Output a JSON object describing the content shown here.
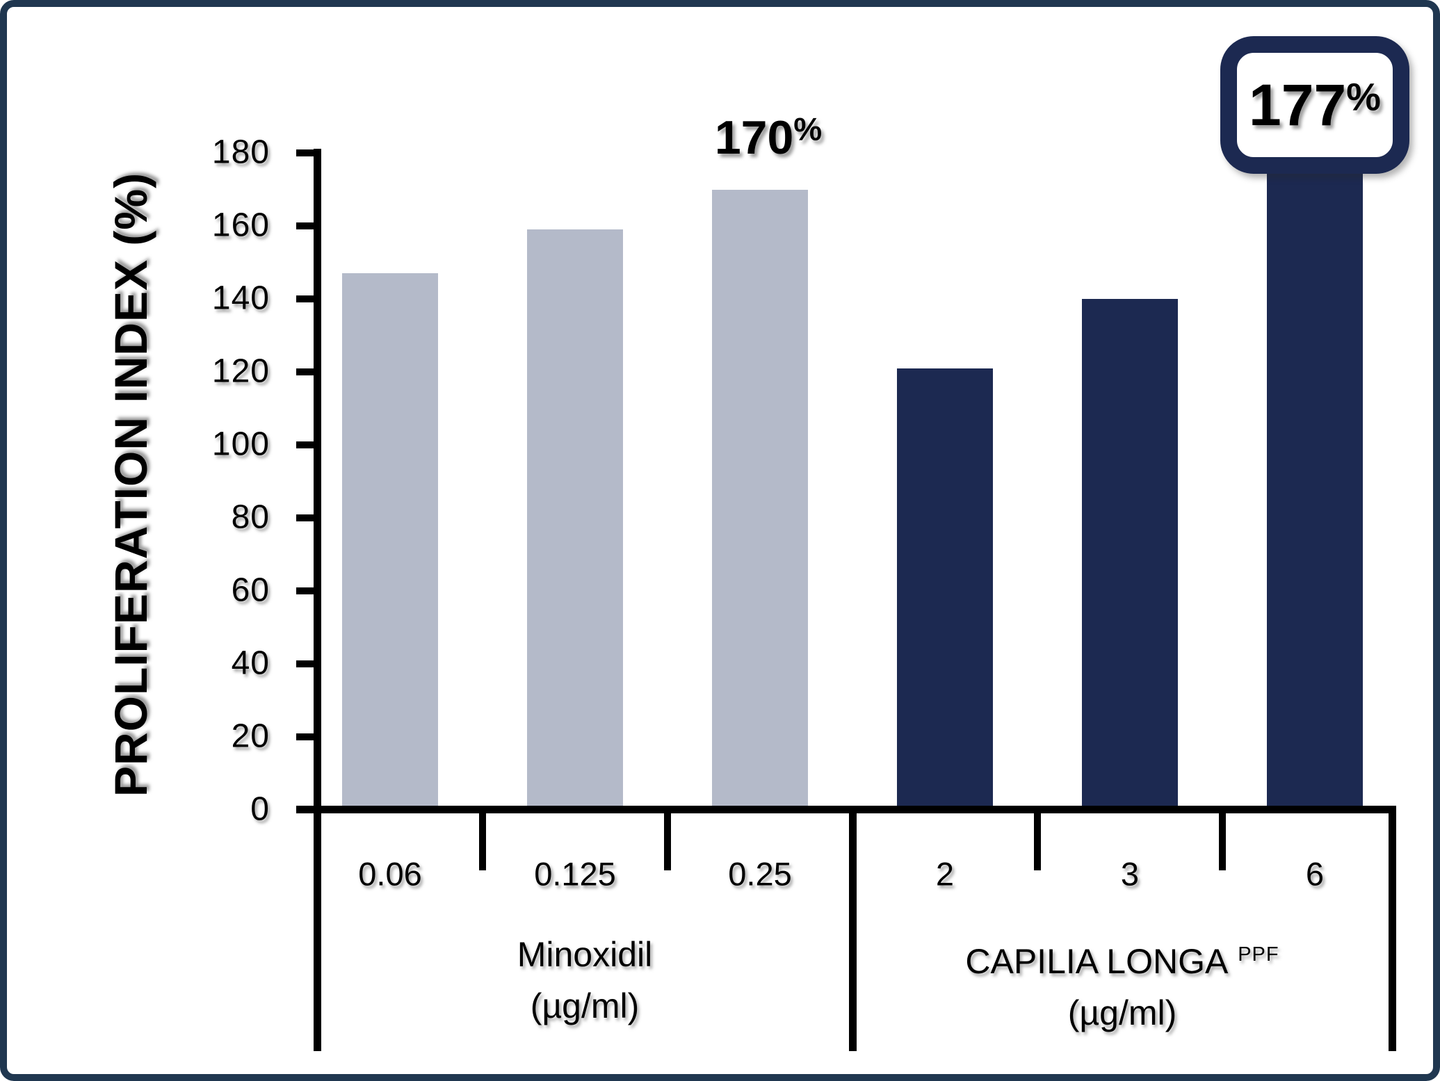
{
  "chart_data": {
    "type": "bar",
    "title": "",
    "ylabel": "PROLIFERATION INDEX (%)",
    "xlabel": "",
    "ylim": [
      0,
      180
    ],
    "ytick_step": 20,
    "ytick_labels": [
      "0",
      "20",
      "40",
      "60",
      "80",
      "100",
      "120",
      "140",
      "160",
      "180"
    ],
    "grid": false,
    "legend_position": "none",
    "categories": [
      "0.06",
      "0.125",
      "0.25",
      "2",
      "3",
      "6"
    ],
    "values": [
      147,
      159,
      170,
      121,
      140,
      177
    ],
    "groups": [
      {
        "label": "Minoxidil",
        "superscript": "",
        "unit": "(µg/ml)",
        "categories": [
          "0.06",
          "0.125",
          "0.25"
        ],
        "values": [
          147,
          159,
          170
        ],
        "bar_color": "#b4bac9"
      },
      {
        "label": "CAPILIA LONGA",
        "superscript": "PPF",
        "unit": "(µg/ml)",
        "categories": [
          "2",
          "3",
          "6"
        ],
        "values": [
          121,
          140,
          177
        ],
        "bar_color": "#1c2951"
      }
    ],
    "annotations": [
      {
        "text": "170%",
        "category": "0.25",
        "style": "plain"
      },
      {
        "text": "177%",
        "category": "6",
        "style": "boxed"
      }
    ]
  },
  "colors": {
    "light_bar": "#b4bac9",
    "dark_bar": "#1c2951",
    "frame_border": "#203750",
    "annotation_box_border": "#1c2951",
    "axis": "#000000",
    "text": "#000000",
    "background": "#ffffff"
  }
}
